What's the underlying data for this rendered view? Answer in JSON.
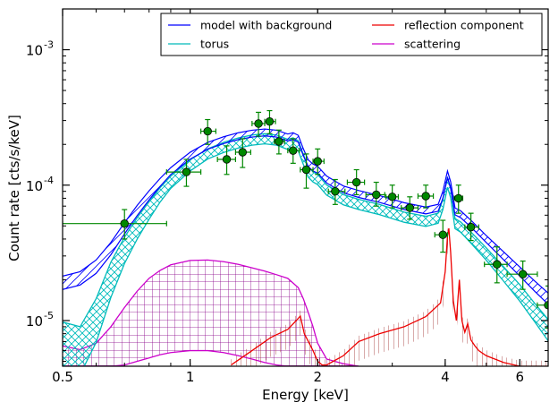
{
  "chart_data": {
    "type": "line",
    "xlabel": "Energy [keV]",
    "ylabel": "Count rate [cts/s/keV]",
    "xscale": "log",
    "yscale": "log",
    "xlim": [
      0.5,
      7.0
    ],
    "ylim": [
      4.6e-06,
      0.002
    ],
    "x_ticks": [
      {
        "value": 0.5,
        "label": "0.5"
      },
      {
        "value": 1,
        "label": "1"
      },
      {
        "value": 2,
        "label": "2"
      },
      {
        "value": 4,
        "label": "4"
      },
      {
        "value": 6,
        "label": "6"
      }
    ],
    "y_ticks": [
      {
        "value": 1e-05,
        "base": "10",
        "exp": "-5"
      },
      {
        "value": 0.0001,
        "base": "10",
        "exp": "-4"
      },
      {
        "value": 0.001,
        "base": "10",
        "exp": "-3"
      }
    ],
    "legend_position": "top-right",
    "legend_columns": 2,
    "series": [
      {
        "name": "model with background",
        "color": "#0000ff",
        "style": "band",
        "x": [
          0.5,
          0.55,
          0.6,
          0.65,
          0.7,
          0.75,
          0.8,
          0.85,
          0.9,
          1.0,
          1.1,
          1.2,
          1.3,
          1.4,
          1.5,
          1.6,
          1.7,
          1.75,
          1.8,
          1.85,
          1.9,
          1.95,
          2.0,
          2.1,
          2.3,
          2.5,
          2.8,
          3.2,
          3.6,
          3.85,
          3.95,
          4.05,
          4.12,
          4.22,
          4.35,
          4.6,
          5.0,
          5.5,
          6.0,
          6.5,
          7.0
        ],
        "y": [
          1.9e-05,
          2.05e-05,
          2.5e-05,
          3.4e-05,
          4.8e-05,
          6.5e-05,
          8.4e-05,
          0.000105,
          0.000127,
          0.000165,
          0.000195,
          0.000215,
          0.00023,
          0.00024,
          0.000245,
          0.00024,
          0.000225,
          0.00023,
          0.00022,
          0.000175,
          0.000145,
          0.000135,
          0.00013,
          0.00011,
          9.3e-05,
          8.6e-05,
          7.9e-05,
          7e-05,
          6.5e-05,
          6.8e-05,
          8.5e-05,
          0.00012,
          0.0001,
          6.4e-05,
          6.1e-05,
          5.2e-05,
          4e-05,
          3e-05,
          2.3e-05,
          1.8e-05,
          1.45e-05
        ],
        "band_factor": [
          1.12,
          1.12,
          1.12,
          1.11,
          1.1,
          1.09,
          1.08,
          1.07,
          1.06,
          1.06,
          1.06,
          1.06,
          1.06,
          1.06,
          1.06,
          1.06,
          1.06,
          1.06,
          1.06,
          1.06,
          1.06,
          1.06,
          1.06,
          1.06,
          1.06,
          1.06,
          1.06,
          1.06,
          1.06,
          1.06,
          1.06,
          1.06,
          1.06,
          1.06,
          1.06,
          1.06,
          1.06,
          1.07,
          1.08,
          1.09,
          1.1
        ]
      },
      {
        "name": "torus",
        "color": "#00bbbb",
        "style": "hatched-band",
        "x": [
          0.5,
          0.55,
          0.6,
          0.65,
          0.7,
          0.75,
          0.8,
          0.85,
          0.9,
          1.0,
          1.1,
          1.2,
          1.3,
          1.4,
          1.5,
          1.6,
          1.7,
          1.75,
          1.8,
          1.85,
          1.9,
          1.95,
          2.0,
          2.1,
          2.3,
          2.5,
          2.8,
          3.2,
          3.6,
          3.85,
          3.95,
          4.05,
          4.12,
          4.22,
          4.35,
          4.6,
          5.0,
          5.5,
          6.0,
          6.5,
          7.0
        ],
        "y": [
          6.5e-06,
          6e-06,
          1e-05,
          2e-05,
          3.3e-05,
          4.8e-05,
          6.5e-05,
          8.5e-05,
          0.000105,
          0.00014,
          0.00017,
          0.00019,
          0.000205,
          0.000215,
          0.00022,
          0.000215,
          0.0002,
          0.000205,
          0.000195,
          0.000155,
          0.000125,
          0.000115,
          0.00011,
          9.2e-05,
          7.8e-05,
          7.2e-05,
          6.6e-05,
          5.8e-05,
          5.4e-05,
          5.7e-05,
          7.2e-05,
          0.000105,
          8.8e-05,
          5.2e-05,
          4.9e-05,
          4.1e-05,
          3.1e-05,
          2.2e-05,
          1.6e-05,
          1.15e-05,
          8.5e-06
        ],
        "band_factor": [
          1.5,
          1.5,
          1.45,
          1.35,
          1.25,
          1.2,
          1.16,
          1.13,
          1.11,
          1.1,
          1.09,
          1.09,
          1.09,
          1.09,
          1.09,
          1.09,
          1.09,
          1.09,
          1.09,
          1.09,
          1.09,
          1.09,
          1.09,
          1.09,
          1.09,
          1.09,
          1.09,
          1.09,
          1.09,
          1.09,
          1.09,
          1.09,
          1.09,
          1.09,
          1.09,
          1.1,
          1.11,
          1.13,
          1.15,
          1.17,
          1.2
        ]
      },
      {
        "name": "reflection component",
        "color": "#ee0000",
        "style": "vertical-hatched-band",
        "x": [
          1.25,
          1.4,
          1.55,
          1.7,
          1.78,
          1.82,
          1.86,
          1.95,
          2.0,
          2.05,
          2.1,
          2.3,
          2.5,
          2.8,
          3.2,
          3.6,
          3.9,
          4.0,
          4.05,
          4.08,
          4.12,
          4.18,
          4.25,
          4.32,
          4.38,
          4.45,
          4.52,
          4.6,
          4.7,
          4.8,
          5.0,
          5.5,
          6.0,
          6.5,
          7.0
        ],
        "y": [
          4.7e-06,
          6e-06,
          7.5e-06,
          8.6e-06,
          1e-05,
          1.08e-05,
          8e-06,
          6e-06,
          5e-06,
          4.7e-06,
          4.7e-06,
          5.5e-06,
          7e-06,
          8e-06,
          9e-06,
          1.07e-05,
          1.35e-05,
          2.3e-05,
          4.2e-05,
          4.8e-05,
          3.2e-05,
          1.4e-05,
          1e-05,
          2e-05,
          1e-05,
          8.2e-06,
          9.5e-06,
          7.2e-06,
          6.5e-06,
          6e-06,
          5.5e-06,
          4.9e-06,
          4.6e-06,
          4.6e-06,
          4.6e-06
        ],
        "band_factor_low": 0.72,
        "band_factor_high": 1.1
      },
      {
        "name": "scattering",
        "color": "#cc00cc",
        "style": "grid-hatched-band",
        "x": [
          0.5,
          0.55,
          0.6,
          0.65,
          0.7,
          0.75,
          0.8,
          0.85,
          0.9,
          1.0,
          1.1,
          1.2,
          1.3,
          1.4,
          1.5,
          1.6,
          1.7,
          1.8,
          1.85,
          1.9,
          1.95,
          2.0,
          2.1,
          2.3,
          2.5
        ],
        "y_low": [
          4.6e-06,
          4.6e-06,
          4.6e-06,
          4.6e-06,
          4.7e-06,
          5e-06,
          5.3e-06,
          5.6e-06,
          5.8e-06,
          6e-06,
          6e-06,
          5.8e-06,
          5.5e-06,
          5.2e-06,
          4.9e-06,
          4.7e-06,
          4.6e-06,
          4.6e-06,
          4.6e-06,
          4.6e-06,
          4.6e-06,
          4.6e-06,
          4.6e-06,
          4.6e-06,
          4.6e-06
        ],
        "y_high": [
          6.5e-06,
          6.1e-06,
          6.8e-06,
          9e-06,
          1.25e-05,
          1.65e-05,
          2.05e-05,
          2.35e-05,
          2.58e-05,
          2.78e-05,
          2.8e-05,
          2.72e-05,
          2.6e-05,
          2.45e-05,
          2.32e-05,
          2.18e-05,
          2.05e-05,
          1.75e-05,
          1.45e-05,
          1.15e-05,
          9e-06,
          6.8e-06,
          5.2e-06,
          4.8e-06,
          4.6e-06
        ]
      }
    ],
    "data_points": [
      {
        "x": 0.7,
        "y": 5.2e-05,
        "xerr": [
          0.5,
          0.88
        ],
        "yerr": [
          4e-05,
          6.6e-05
        ]
      },
      {
        "x": 0.98,
        "y": 0.000125,
        "xerr": [
          0.88,
          1.06
        ],
        "yerr": [
          9.8e-05,
          0.000155
        ]
      },
      {
        "x": 1.1,
        "y": 0.00025,
        "xerr": [
          1.06,
          1.15
        ],
        "yerr": [
          0.0002,
          0.000305
        ]
      },
      {
        "x": 1.22,
        "y": 0.000155,
        "xerr": [
          1.16,
          1.28
        ],
        "yerr": [
          0.00012,
          0.000195
        ]
      },
      {
        "x": 1.33,
        "y": 0.000175,
        "xerr": [
          1.28,
          1.39
        ],
        "yerr": [
          0.000135,
          0.00022
        ]
      },
      {
        "x": 1.45,
        "y": 0.000285,
        "xerr": [
          1.4,
          1.5
        ],
        "yerr": [
          0.00023,
          0.000345
        ]
      },
      {
        "x": 1.54,
        "y": 0.000295,
        "xerr": [
          1.5,
          1.59
        ],
        "yerr": [
          0.00024,
          0.000355
        ]
      },
      {
        "x": 1.62,
        "y": 0.00021,
        "xerr": [
          1.58,
          1.67
        ],
        "yerr": [
          0.00017,
          0.000255
        ]
      },
      {
        "x": 1.75,
        "y": 0.00018,
        "xerr": [
          1.7,
          1.81
        ],
        "yerr": [
          0.000145,
          0.00022
        ]
      },
      {
        "x": 1.88,
        "y": 0.00013,
        "xerr": [
          1.82,
          1.95
        ],
        "yerr": [
          9.5e-05,
          0.00017
        ]
      },
      {
        "x": 2.0,
        "y": 0.00015,
        "xerr": [
          1.95,
          2.07
        ],
        "yerr": [
          0.00012,
          0.000185
        ]
      },
      {
        "x": 2.2,
        "y": 9e-05,
        "xerr": [
          2.12,
          2.32
        ],
        "yerr": [
          7.2e-05,
          0.00011
        ]
      },
      {
        "x": 2.47,
        "y": 0.000105,
        "xerr": [
          2.35,
          2.58
        ],
        "yerr": [
          8.5e-05,
          0.00013
        ]
      },
      {
        "x": 2.75,
        "y": 8.5e-05,
        "xerr": [
          2.6,
          2.88
        ],
        "yerr": [
          7e-05,
          0.000105
        ]
      },
      {
        "x": 3.0,
        "y": 8.2e-05,
        "xerr": [
          2.9,
          3.1
        ],
        "yerr": [
          6.8e-05,
          0.0001
        ]
      },
      {
        "x": 3.3,
        "y": 6.8e-05,
        "xerr": [
          3.15,
          3.45
        ],
        "yerr": [
          5.6e-05,
          8.2e-05
        ]
      },
      {
        "x": 3.6,
        "y": 8.3e-05,
        "xerr": [
          3.45,
          3.75
        ],
        "yerr": [
          6.8e-05,
          0.0001
        ]
      },
      {
        "x": 3.95,
        "y": 4.3e-05,
        "xerr": [
          3.78,
          4.05
        ],
        "yerr": [
          3.2e-05,
          5.5e-05
        ]
      },
      {
        "x": 4.3,
        "y": 8e-05,
        "xerr": [
          4.2,
          4.4
        ],
        "yerr": [
          6.2e-05,
          0.0001
        ]
      },
      {
        "x": 4.6,
        "y": 4.9e-05,
        "xerr": [
          4.45,
          4.8
        ],
        "yerr": [
          3.9e-05,
          6.2e-05
        ]
      },
      {
        "x": 5.3,
        "y": 2.6e-05,
        "xerr": [
          4.95,
          5.6
        ],
        "yerr": [
          1.9e-05,
          3.5e-05
        ]
      },
      {
        "x": 6.1,
        "y": 2.2e-05,
        "xerr": [
          5.6,
          6.6
        ],
        "yerr": [
          1.7e-05,
          2.75e-05
        ]
      },
      {
        "x": 7.0,
        "y": 1.3e-05,
        "xerr": [
          6.6,
          7.0
        ],
        "yerr": [
          8.8e-06,
          1.8e-05
        ]
      }
    ],
    "data_point_color": "#008800",
    "grid": false
  }
}
